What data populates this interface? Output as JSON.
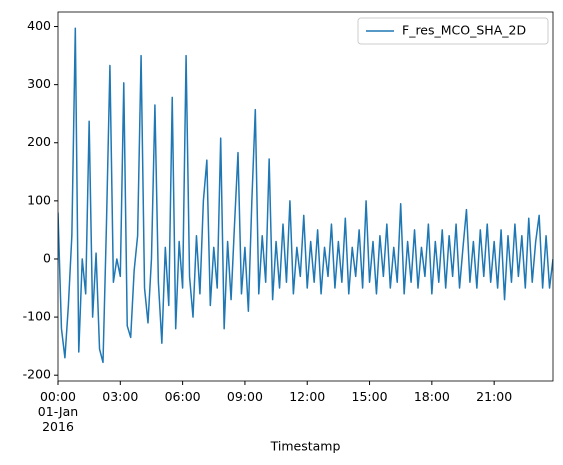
{
  "chart_data": {
    "type": "line",
    "x_label": "Timestamp",
    "x": [
      0,
      10,
      20,
      30,
      40,
      50,
      60,
      70,
      80,
      90,
      100,
      110,
      120,
      130,
      140,
      150,
      160,
      170,
      180,
      190,
      200,
      210,
      220,
      230,
      240,
      250,
      260,
      270,
      280,
      290,
      300,
      310,
      320,
      330,
      340,
      350,
      360,
      370,
      380,
      390,
      400,
      410,
      420,
      430,
      440,
      450,
      460,
      470,
      480,
      490,
      500,
      510,
      520,
      530,
      540,
      550,
      560,
      570,
      580,
      590,
      600,
      610,
      620,
      630,
      640,
      650,
      660,
      670,
      680,
      690,
      700,
      710,
      720,
      730,
      740,
      750,
      760,
      770,
      780,
      790,
      800,
      810,
      820,
      830,
      840,
      850,
      860,
      870,
      880,
      890,
      900,
      910,
      920,
      930,
      940,
      950,
      960,
      970,
      980,
      990,
      1000,
      1010,
      1020,
      1030,
      1040,
      1050,
      1060,
      1070,
      1080,
      1090,
      1100,
      1110,
      1120,
      1130,
      1140,
      1150,
      1160,
      1170,
      1180,
      1190,
      1200,
      1210,
      1220,
      1230,
      1240,
      1250,
      1260,
      1270,
      1280,
      1290,
      1300,
      1310,
      1320,
      1330,
      1340,
      1350,
      1360,
      1370,
      1380,
      1390,
      1400,
      1410,
      1420,
      1430
    ],
    "series": [
      {
        "name": "F_res_MCO_SHA_2D",
        "color": "#1f77b4",
        "values": [
          80,
          -120,
          -170,
          -80,
          40,
          397,
          -160,
          0,
          -60,
          237,
          -100,
          10,
          -155,
          -178,
          60,
          333,
          -40,
          0,
          -30,
          303,
          -115,
          -135,
          -20,
          40,
          350,
          -50,
          -110,
          0,
          265,
          -40,
          -145,
          20,
          -80,
          278,
          -120,
          30,
          -50,
          350,
          -30,
          -100,
          40,
          -60,
          100,
          170,
          -80,
          20,
          -50,
          208,
          -120,
          30,
          -70,
          60,
          183,
          -60,
          20,
          -90,
          100,
          257,
          -60,
          40,
          -40,
          172,
          -70,
          30,
          -50,
          60,
          -40,
          100,
          -60,
          20,
          -30,
          75,
          -50,
          30,
          -40,
          50,
          -60,
          20,
          -30,
          60,
          -50,
          30,
          -40,
          70,
          -60,
          20,
          -30,
          50,
          -50,
          100,
          -40,
          30,
          -60,
          40,
          -30,
          60,
          -50,
          20,
          -40,
          95,
          -60,
          30,
          -40,
          50,
          -50,
          20,
          -30,
          60,
          -60,
          30,
          -40,
          50,
          -50,
          40,
          -30,
          60,
          -50,
          20,
          85,
          -40,
          30,
          -50,
          50,
          -30,
          60,
          -40,
          30,
          -50,
          50,
          -70,
          40,
          -40,
          60,
          -30,
          40,
          -50,
          70,
          -40,
          30,
          75,
          -50,
          40,
          -50,
          0
        ]
      }
    ],
    "xlim": [
      0,
      1430
    ],
    "xticks": [
      {
        "value": 0,
        "label": "00:00\n01-Jan\n2016"
      },
      {
        "value": 180,
        "label": "03:00"
      },
      {
        "value": 360,
        "label": "06:00"
      },
      {
        "value": 540,
        "label": "09:00"
      },
      {
        "value": 720,
        "label": "12:00"
      },
      {
        "value": 900,
        "label": "15:00"
      },
      {
        "value": 1080,
        "label": "18:00"
      },
      {
        "value": 1260,
        "label": "21:00"
      }
    ],
    "ylim": [
      -210,
      425
    ],
    "yticks": [
      -200,
      -100,
      0,
      100,
      200,
      300,
      400
    ],
    "legend": "upper right"
  }
}
